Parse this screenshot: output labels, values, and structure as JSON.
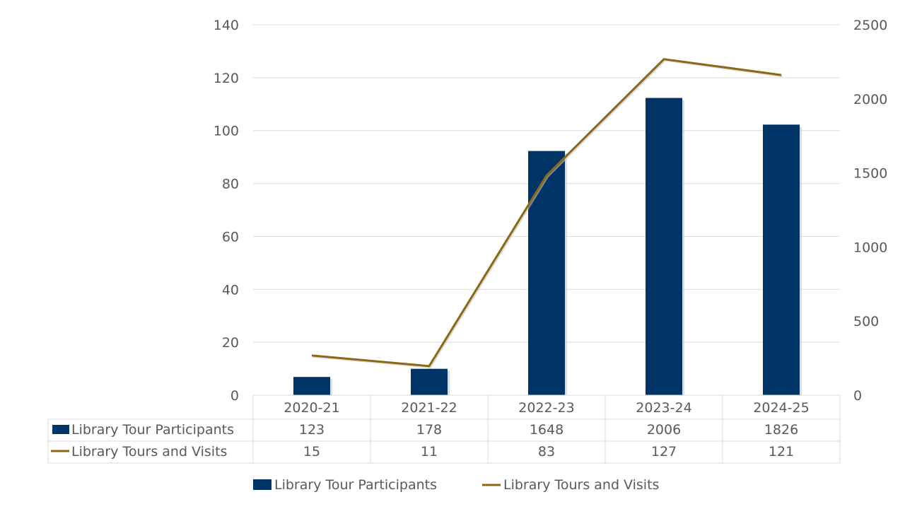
{
  "chart_data": {
    "type": "bar+line (combo with data table)",
    "title": "",
    "categories": [
      "2020-21",
      "2021-22",
      "2022-23",
      "2023-24",
      "2024-25"
    ],
    "series": [
      {
        "name": "Library Tour Participants",
        "type": "bar",
        "axis": "right",
        "color": "#003366",
        "values": [
          123,
          178,
          1648,
          2006,
          1826
        ]
      },
      {
        "name": "Library Tours and Visits",
        "type": "line",
        "axis": "left",
        "color": "#8B6914",
        "values": [
          15,
          11,
          83,
          127,
          121
        ]
      }
    ],
    "left_axis": {
      "ylim": [
        0,
        140
      ],
      "ticks": [
        0,
        20,
        40,
        60,
        80,
        100,
        120,
        140
      ]
    },
    "right_axis": {
      "ylim": [
        0,
        2500
      ],
      "ticks": [
        0,
        500,
        1000,
        1500,
        2000,
        2500
      ]
    },
    "grid": true,
    "legend_position": "bottom",
    "data_table": true
  },
  "legend": {
    "bar_label": "Library Tour Participants",
    "line_label": "Library Tours and Visits"
  },
  "table": {
    "rows": [
      {
        "label": "Library Tour Participants",
        "values": [
          "123",
          "178",
          "1648",
          "2006",
          "1826"
        ]
      },
      {
        "label": "Library Tours and Visits",
        "values": [
          "15",
          "11",
          "83",
          "127",
          "121"
        ]
      }
    ]
  }
}
